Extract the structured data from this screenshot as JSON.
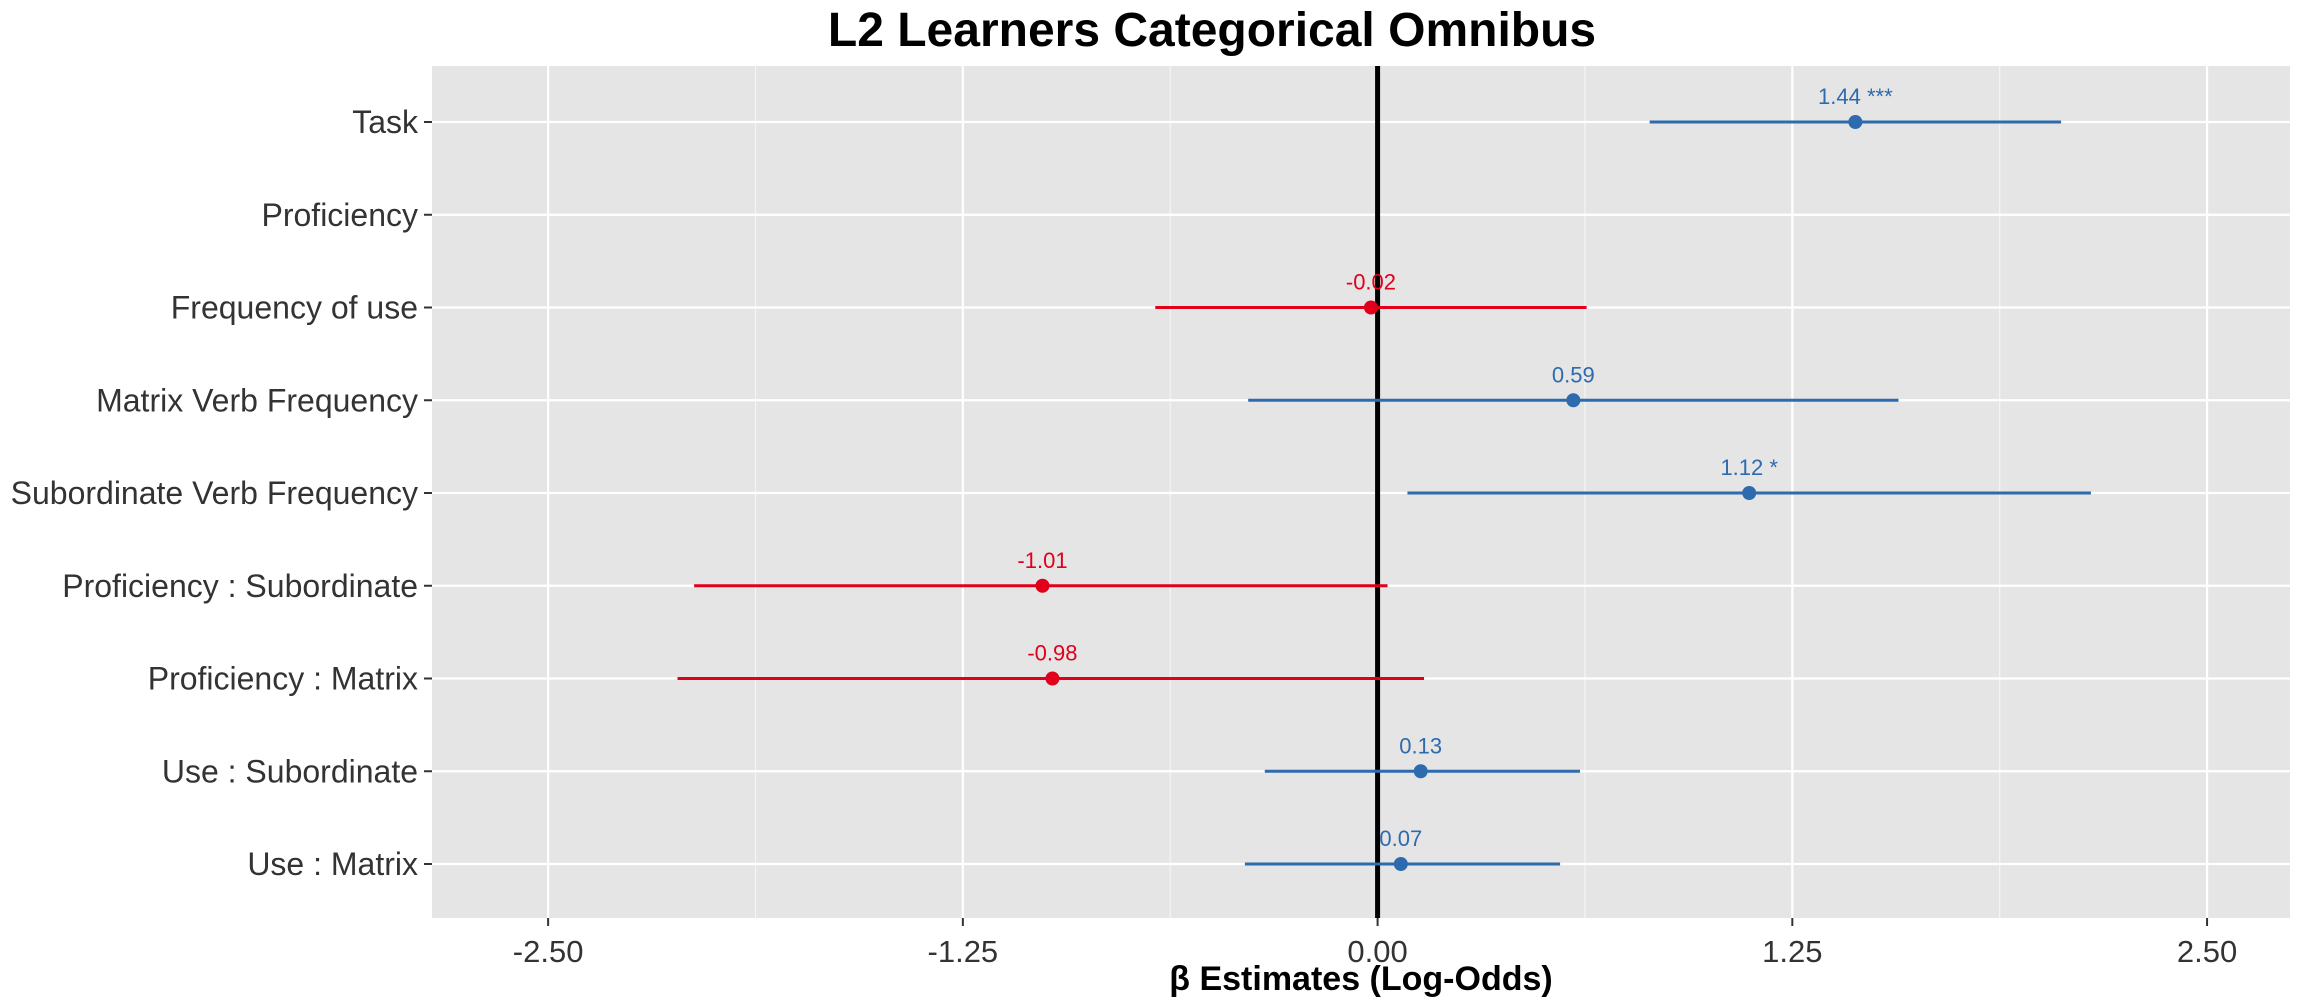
{
  "chart_data": {
    "type": "scatter",
    "title": "L2 Learners Categorical Omnibus",
    "xlabel": "β Estimates (Log-Odds)",
    "ylabel": "",
    "xlim": [
      -2.85,
      2.75
    ],
    "xticks": [
      "-2.50",
      "-1.25",
      "0.00",
      "1.25",
      "2.50"
    ],
    "xtick_values": [
      -2.5,
      -1.25,
      0,
      1.25,
      2.5
    ],
    "reference_line_x": 0,
    "grid": true,
    "colors": {
      "positive": "#2E6AAE",
      "negative": "#E0001B",
      "panel": "#E5E5E5",
      "grid": "#FFFFFF"
    },
    "terms": [
      {
        "name": "Task",
        "estimate": 1.44,
        "ci_low": 0.82,
        "ci_high": 2.06,
        "label": "1.44 ***",
        "color": "#2E6AAE"
      },
      {
        "name": "Proficiency",
        "estimate": null,
        "ci_low": null,
        "ci_high": null,
        "label": "",
        "color": "#2E6AAE"
      },
      {
        "name": "Frequency of use",
        "estimate": -0.02,
        "ci_low": -0.67,
        "ci_high": 0.63,
        "label": "-0.02",
        "color": "#E0001B"
      },
      {
        "name": "Matrix Verb Frequency",
        "estimate": 0.59,
        "ci_low": -0.39,
        "ci_high": 1.57,
        "label": "0.59",
        "color": "#2E6AAE"
      },
      {
        "name": "Subordinate Verb Frequency",
        "estimate": 1.12,
        "ci_low": 0.09,
        "ci_high": 2.15,
        "label": "1.12 *",
        "color": "#2E6AAE"
      },
      {
        "name": "Proficiency : Subordinate",
        "estimate": -1.01,
        "ci_low": -2.06,
        "ci_high": 0.03,
        "label": "-1.01",
        "color": "#E0001B"
      },
      {
        "name": "Proficiency : Matrix",
        "estimate": -0.98,
        "ci_low": -2.11,
        "ci_high": 0.14,
        "label": "-0.98",
        "color": "#E0001B"
      },
      {
        "name": "Use : Subordinate",
        "estimate": 0.13,
        "ci_low": -0.34,
        "ci_high": 0.61,
        "label": "0.13",
        "color": "#2E6AAE"
      },
      {
        "name": "Use : Matrix",
        "estimate": 0.07,
        "ci_low": -0.4,
        "ci_high": 0.55,
        "label": "0.07",
        "color": "#2E6AAE"
      }
    ]
  }
}
